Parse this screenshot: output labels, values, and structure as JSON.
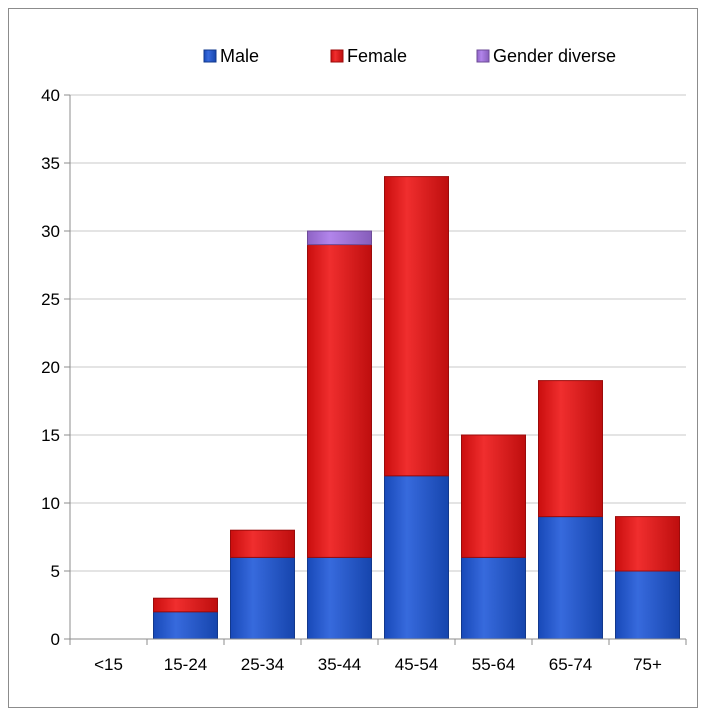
{
  "chart_data": {
    "type": "bar",
    "stacked": true,
    "categories": [
      "<15",
      "15-24",
      "25-34",
      "35-44",
      "45-54",
      "55-64",
      "65-74",
      "75+"
    ],
    "series": [
      {
        "name": "Male",
        "color": "#1c56d8",
        "values": [
          0,
          2,
          6,
          6,
          12,
          6,
          9,
          5
        ]
      },
      {
        "name": "Female",
        "color": "#ee1111",
        "values": [
          0,
          1,
          2,
          23,
          22,
          9,
          10,
          4
        ]
      },
      {
        "name": "Gender diverse",
        "color": "#a774e8",
        "values": [
          0,
          0,
          0,
          1,
          0,
          0,
          0,
          0
        ]
      }
    ],
    "ylim": [
      0,
      40
    ],
    "yticks": [
      0,
      5,
      10,
      15,
      20,
      25,
      30,
      35,
      40
    ],
    "grid": true,
    "legend": "top-right",
    "title": "",
    "xlabel": "",
    "ylabel": ""
  }
}
